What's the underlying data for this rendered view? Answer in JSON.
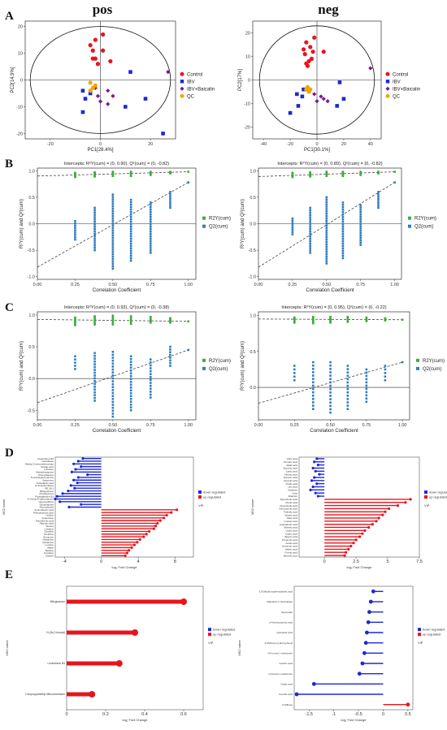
{
  "panel_labels": {
    "A": "A",
    "B": "B",
    "C": "C",
    "D": "D",
    "E": "E"
  },
  "pca_titles": {
    "left": "pos",
    "right": "neg"
  },
  "pca_legend": [
    {
      "name": "Control",
      "color": "#e8141c"
    },
    {
      "name": "IBV",
      "color": "#1c28d8"
    },
    {
      "name": "IBV+Baicalin",
      "color": "#7a1a8c"
    },
    {
      "name": "QC",
      "color": "#f0a800"
    }
  ],
  "perm_legend": [
    {
      "name": "R2Y(cum)",
      "color": "#3aae3a"
    },
    {
      "name": "Q2(cum)",
      "color": "#2e7dbd"
    }
  ],
  "vip_legend": {
    "title": "VIP",
    "labels": [
      "down regulated",
      "up regulated"
    ],
    "colors": [
      "#1c28d8",
      "#e8141c"
    ]
  },
  "chart_data": [
    {
      "id": "A-pos",
      "type": "scatter",
      "title": "pos",
      "xlabel": "PC1[28.4%]",
      "ylabel": "PC2[14.9%]",
      "xlim": [
        -30,
        30
      ],
      "ylim": [
        -22,
        22
      ],
      "xticks": [
        -20,
        0,
        20
      ],
      "yticks": [
        -20,
        -10,
        0,
        10,
        20
      ],
      "ellipse": {
        "rx": 28,
        "ry": 20
      },
      "series": [
        {
          "name": "Control",
          "color": "#e8141c",
          "points": [
            [
              1,
              17
            ],
            [
              -2,
              15
            ],
            [
              -4,
              13
            ],
            [
              -3,
              11
            ],
            [
              1,
              11
            ],
            [
              -2,
              8
            ],
            [
              -3,
              8
            ],
            [
              4,
              7
            ],
            [
              -1,
              6
            ]
          ]
        },
        {
          "name": "IBV",
          "color": "#1c28d8",
          "points": [
            [
              12,
              3
            ],
            [
              -7,
              -4
            ],
            [
              -4,
              -5
            ],
            [
              -6,
              -7
            ],
            [
              18,
              -7
            ],
            [
              10,
              -10
            ],
            [
              -7,
              -12
            ],
            [
              25,
              -20
            ]
          ]
        },
        {
          "name": "IBV+Baicalin",
          "color": "#7a1a8c",
          "points": [
            [
              -2,
              -3
            ],
            [
              3,
              -4
            ],
            [
              -1,
              -6
            ],
            [
              5,
              -6
            ],
            [
              3,
              -9
            ],
            [
              0,
              -8
            ],
            [
              27,
              3
            ]
          ]
        },
        {
          "name": "QC",
          "color": "#f0a800",
          "points": [
            [
              -4,
              -1
            ],
            [
              -3,
              -3
            ],
            [
              -2,
              -2
            ],
            [
              -4,
              -4
            ]
          ]
        }
      ]
    },
    {
      "id": "A-neg",
      "type": "scatter",
      "title": "neg",
      "xlabel": "PC1[30.1%]",
      "ylabel": "PC2[17%]",
      "xlim": [
        -48,
        48
      ],
      "ylim": [
        -25,
        25
      ],
      "xticks": [
        -40,
        -20,
        0,
        20,
        40
      ],
      "yticks": [
        -20,
        -10,
        0,
        10,
        20
      ],
      "ellipse": {
        "rx": 43,
        "ry": 23
      },
      "series": [
        {
          "name": "Control",
          "color": "#e8141c",
          "points": [
            [
              -2,
              18
            ],
            [
              -8,
              16
            ],
            [
              -5,
              14
            ],
            [
              -10,
              13
            ],
            [
              -3,
              12
            ],
            [
              -9,
              11
            ],
            [
              5,
              12
            ],
            [
              -4,
              9
            ],
            [
              -6,
              8
            ],
            [
              -8,
              7
            ],
            [
              -7,
              6
            ]
          ]
        },
        {
          "name": "IBV",
          "color": "#1c28d8",
          "points": [
            [
              17,
              -1
            ],
            [
              -10,
              -4
            ],
            [
              -15,
              -6
            ],
            [
              -11,
              -7
            ],
            [
              20,
              -8
            ],
            [
              15,
              -11
            ],
            [
              -14,
              -11
            ],
            [
              -20,
              -14
            ]
          ]
        },
        {
          "name": "IBV+Baicalin",
          "color": "#7a1a8c",
          "points": [
            [
              -2,
              -6
            ],
            [
              3,
              -7
            ],
            [
              0,
              -9
            ],
            [
              8,
              -9
            ],
            [
              5,
              -8
            ],
            [
              40,
              5
            ]
          ]
        },
        {
          "name": "QC",
          "color": "#f0a800",
          "points": [
            [
              -7,
              -3
            ],
            [
              -5,
              -4
            ],
            [
              -6,
              -5
            ],
            [
              -8,
              -4
            ]
          ]
        }
      ]
    },
    {
      "id": "B-pos",
      "type": "scatter",
      "title": "Intercepts: R²Y(cum) = (0, 0.90), Q²(cum) = (0, -0.82)",
      "xlabel": "Correlation Coefficient",
      "ylabel": "R²Y(cum) and Q²(cum)",
      "xlim": [
        0,
        1.05
      ],
      "ylim": [
        -1.05,
        1.05
      ],
      "xticks": [
        0.0,
        0.25,
        0.5,
        0.75,
        1.0
      ],
      "yticks": [
        -1.0,
        -0.5,
        0.0,
        0.5,
        1.0
      ],
      "r2y_intercept": 0.9,
      "q2_intercept": -0.82,
      "r2y_end": 0.98,
      "q2_end": 0.78,
      "r2y_cols": [
        [
          0.25,
          0.88,
          0.96
        ],
        [
          0.38,
          0.89,
          0.97
        ],
        [
          0.5,
          0.9,
          0.98
        ],
        [
          0.62,
          0.9,
          0.98
        ],
        [
          0.75,
          0.92,
          0.98
        ],
        [
          0.88,
          0.95,
          0.98
        ]
      ],
      "q2_cols": [
        [
          0.25,
          -0.3,
          0.05
        ],
        [
          0.38,
          -0.5,
          0.3
        ],
        [
          0.5,
          -0.85,
          0.55
        ],
        [
          0.62,
          -0.7,
          0.45
        ],
        [
          0.75,
          -0.55,
          0.4
        ],
        [
          0.88,
          0.3,
          0.6
        ],
        [
          1.0,
          0.78,
          0.78
        ]
      ]
    },
    {
      "id": "B-neg",
      "type": "scatter",
      "title": "Intercepts: R²Y(cum) = (0, 0.89), Q²(cum) = (0, -0.82)",
      "xlabel": "Correlation Coefficient",
      "ylabel": "R²Y(cum) and Q²(cum)",
      "xlim": [
        0,
        1.05
      ],
      "ylim": [
        -1.05,
        1.05
      ],
      "xticks": [
        0.0,
        0.25,
        0.5,
        0.75,
        1.0
      ],
      "yticks": [
        -1.0,
        -0.5,
        0.0,
        0.5,
        1.0
      ],
      "r2y_intercept": 0.89,
      "q2_intercept": -0.82,
      "r2y_end": 0.98,
      "q2_end": 0.78,
      "r2y_cols": [
        [
          0.25,
          0.88,
          0.96
        ],
        [
          0.38,
          0.89,
          0.97
        ],
        [
          0.5,
          0.9,
          0.98
        ],
        [
          0.62,
          0.9,
          0.98
        ],
        [
          0.75,
          0.92,
          0.98
        ],
        [
          0.88,
          0.95,
          0.98
        ]
      ],
      "q2_cols": [
        [
          0.25,
          -0.2,
          0.1
        ],
        [
          0.38,
          -0.55,
          0.3
        ],
        [
          0.5,
          -0.75,
          0.5
        ],
        [
          0.62,
          -0.65,
          0.4
        ],
        [
          0.75,
          -0.4,
          0.35
        ],
        [
          0.88,
          0.3,
          0.6
        ],
        [
          1.0,
          0.78,
          0.78
        ]
      ]
    },
    {
      "id": "C-pos",
      "type": "scatter",
      "title": "Intercepts: R²Y(cum) = (0, 0.93), Q²(cum) = (0, -0.38)",
      "xlabel": "Correlation Coefficient",
      "ylabel": "R²Y(cum) and Q²(cum)",
      "xlim": [
        0,
        1.05
      ],
      "ylim": [
        -0.65,
        1.05
      ],
      "xticks": [
        0.0,
        0.25,
        0.5,
        0.75,
        1.0
      ],
      "yticks": [
        -0.5,
        0.0,
        0.5,
        1.0
      ],
      "r2y_intercept": 0.93,
      "q2_intercept": -0.38,
      "r2y_end": 0.9,
      "q2_end": 0.45,
      "r2y_cols": [
        [
          0.25,
          0.84,
          0.96
        ],
        [
          0.38,
          0.85,
          0.98
        ],
        [
          0.5,
          0.85,
          0.99
        ],
        [
          0.62,
          0.86,
          0.98
        ],
        [
          0.75,
          0.88,
          0.97
        ],
        [
          0.88,
          0.88,
          0.95
        ]
      ],
      "q2_cols": [
        [
          0.25,
          0.15,
          0.35
        ],
        [
          0.38,
          -0.35,
          0.4
        ],
        [
          0.5,
          -0.6,
          0.42
        ],
        [
          0.62,
          -0.5,
          0.35
        ],
        [
          0.75,
          -0.3,
          0.3
        ],
        [
          0.88,
          0.2,
          0.5
        ],
        [
          1.0,
          0.45,
          0.45
        ]
      ]
    },
    {
      "id": "C-neg",
      "type": "scatter",
      "title": "Intercepts: R²Y(cum) = (0, 0.95), Q²(cum) = (0, -0.22)",
      "xlabel": "Correlation Coefficient",
      "ylabel": "R²Y(cum) and Q²(cum)",
      "xlim": [
        0,
        1.05
      ],
      "ylim": [
        -0.45,
        1.05
      ],
      "xticks": [
        0.0,
        0.25,
        0.5,
        0.75,
        1.0
      ],
      "yticks": [
        0.0,
        0.5,
        1.0
      ],
      "r2y_intercept": 0.95,
      "q2_intercept": -0.22,
      "r2y_end": 0.94,
      "q2_end": 0.35,
      "r2y_cols": [
        [
          0.25,
          0.9,
          0.97
        ],
        [
          0.38,
          0.89,
          0.98
        ],
        [
          0.5,
          0.9,
          0.98
        ],
        [
          0.62,
          0.91,
          0.98
        ],
        [
          0.75,
          0.92,
          0.97
        ],
        [
          0.88,
          0.93,
          0.96
        ]
      ],
      "q2_cols": [
        [
          0.25,
          0.1,
          0.3
        ],
        [
          0.38,
          -0.3,
          0.35
        ],
        [
          0.5,
          -0.35,
          0.35
        ],
        [
          0.62,
          -0.3,
          0.3
        ],
        [
          0.75,
          -0.2,
          0.25
        ],
        [
          0.88,
          0.1,
          0.3
        ],
        [
          1.0,
          0.35,
          0.35
        ]
      ]
    },
    {
      "id": "D-pos",
      "type": "bar",
      "xlabel": "log₂ Fold Change",
      "ylabel": "MS2 name",
      "xlim": [
        -5,
        10
      ],
      "xticks": [
        -4,
        0,
        4,
        8
      ],
      "values": [
        -2,
        -2.5,
        -3,
        -2.2,
        -2.8,
        -3.2,
        -1.5,
        -2.5,
        -3,
        -2.6,
        -3.3,
        -2.9,
        -3.6,
        -4.2,
        -4.8,
        -5,
        -4.5,
        -2.2,
        -3.5,
        8.2,
        7.6,
        7.1,
        6.8,
        6.4,
        6.1,
        5.9,
        5.7,
        5.2,
        4.9,
        4.6,
        4.2,
        3.9,
        3.6,
        3.3,
        3,
        2.8,
        2.6
      ],
      "categories": [
        "Leukotriene B4",
        "Isomaltose",
        "Methyl 2-benzoylbenzoate",
        "Azelaic acid",
        "L-Proline",
        "Methylhistamine",
        "Phenylalanine",
        "N-Acetylglucosamine",
        "Spiperone",
        "Indolelactic acid",
        "N-Acetylornithine",
        "PE 18:1",
        "Mitoguazone",
        "Prednisolone",
        "Prostaglandin B1",
        "N-Acetyl-D-glucosamine",
        "Hypoxanthine",
        "Nicotinamide",
        "Pyrocatechol",
        "Aminobutyric acid",
        "Phenylpyruvic acid",
        "Uridine",
        "Guanosine",
        "Pantothenic acid",
        "Hippuric acid",
        "Taurine",
        "Creatine",
        "Citrulline",
        "Ornithine",
        "Serotonin",
        "Histamine",
        "Glutamine",
        "Leucine",
        "Valine",
        "Betaine",
        "Carnitine",
        "Choline"
      ]
    },
    {
      "id": "D-neg",
      "type": "bar",
      "xlabel": "log₂ Fold Change",
      "ylabel": "MS2 name",
      "xlim": [
        -2,
        7.5
      ],
      "xticks": [
        0,
        2.5,
        5,
        7.5
      ],
      "values": [
        -0.6,
        -0.8,
        -0.5,
        -0.9,
        -0.7,
        -0.4,
        -0.8,
        -1.0,
        -0.6,
        -0.9,
        -1.1,
        -0.7,
        -0.5,
        6.8,
        6.4,
        5.8,
        5.1,
        4.8,
        4.6,
        4.3,
        4.1,
        3.8,
        3.5,
        3.2,
        3.0,
        2.8,
        2.5,
        2.3,
        2.1,
        1.9,
        1.7,
        1.6
      ],
      "categories": [
        "Citric acid",
        "Fumaric acid",
        "Malic acid",
        "Succinic acid",
        "Lactic acid",
        "Pyruvic acid",
        "Glyceric acid",
        "Glycolic acid",
        "Oxalic acid",
        "Uric acid",
        "Xanthine",
        "Urea",
        "Allantoin",
        "Taurocholic acid",
        "Cholic acid",
        "Glycocholic acid",
        "Deoxycholic acid",
        "Palmitic acid",
        "Stearic acid",
        "Oleic acid",
        "Linoleic acid",
        "Arachidonic acid",
        "Myristic acid",
        "Lauric acid",
        "Capric acid",
        "Butyric acid",
        "Propionic acid",
        "Acetic acid",
        "Hexanoic acid",
        "Valeric acid",
        "Formic acid",
        "Benzoic acid"
      ]
    },
    {
      "id": "E-pos",
      "type": "bar",
      "xlabel": "log₂ Fold Change",
      "ylabel": "MS2 name",
      "xlim": [
        0,
        0.7
      ],
      "xticks": [
        0,
        0.2,
        0.4,
        0.6
      ],
      "values": [
        0.6,
        0.35,
        0.27,
        0.13
      ],
      "vip": [
        2.4,
        2.2,
        2.0,
        1.8
      ],
      "categories": [
        "Mitoguazone",
        "N-(3α-2-furanyl)",
        "Leukotriene B4",
        "2-Isopropylmethyl trifluoromethane"
      ]
    },
    {
      "id": "E-neg",
      "type": "bar",
      "xlabel": "log₂ Fold Change",
      "ylabel": "MS2 name",
      "xlim": [
        -1.8,
        0.6
      ],
      "xticks": [
        -1.5,
        -1.0,
        -0.5,
        0,
        0.5
      ],
      "values": [
        -0.2,
        -0.25,
        -0.28,
        -0.3,
        -0.33,
        -0.35,
        -0.38,
        -0.42,
        -0.48,
        -1.4,
        -1.75,
        0.5
      ],
      "vip": [
        1.0,
        0.9,
        0.9,
        0.8,
        0.8,
        0.7,
        0.7,
        0.6,
        0.6,
        0.5,
        0.5,
        0.5
      ],
      "categories": [
        "3,5-Dihydroxyphenylacetic acid",
        "Maleamic-1-hexosidase",
        "Glyoxylate",
        "α-Ketoisocaproic acid",
        "Quinolinic acid",
        "6-Methoxy-hydroxyphenyl",
        "N-Formyl-L-methionine",
        "Isocitric acid",
        "N-Acetyl-L-methionine",
        "Oxalic acid",
        "Aconitic acid",
        "D-Ribose"
      ]
    }
  ]
}
